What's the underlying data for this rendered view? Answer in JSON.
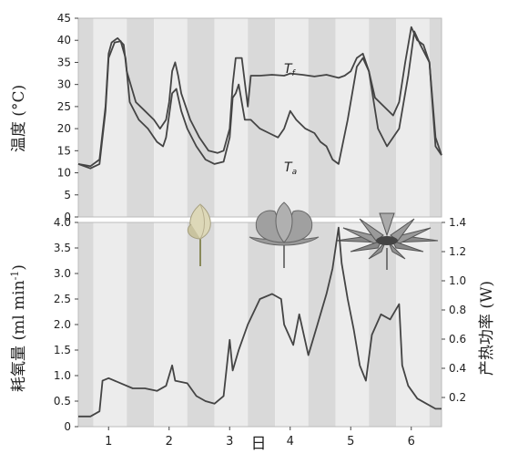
{
  "chart_data": [
    {
      "type": "line",
      "panel": "top",
      "xlabel": "日",
      "ylabel": "温度 (°C)",
      "xlim": [
        0.5,
        6.5
      ],
      "ylim": [
        0,
        45
      ],
      "x_ticks": [
        "1",
        "2",
        "3",
        "4",
        "5",
        "6"
      ],
      "y_ticks": [
        "0",
        "5",
        "10",
        "15",
        "20",
        "25",
        "30",
        "35",
        "40",
        "45"
      ],
      "shading": "alternating gray bands (day/night)",
      "series": [
        {
          "name": "Tf",
          "label_main": "T",
          "label_sub": "f",
          "color": "#444444",
          "points": [
            [
              0.5,
              12
            ],
            [
              0.7,
              11.5
            ],
            [
              0.85,
              13
            ],
            [
              0.95,
              25
            ],
            [
              1.0,
              37
            ],
            [
              1.05,
              39.5
            ],
            [
              1.15,
              40.5
            ],
            [
              1.25,
              39
            ],
            [
              1.3,
              33
            ],
            [
              1.45,
              26
            ],
            [
              1.6,
              24
            ],
            [
              1.75,
              22
            ],
            [
              1.85,
              20
            ],
            [
              1.95,
              22
            ],
            [
              2.0,
              26
            ],
            [
              2.05,
              33
            ],
            [
              2.1,
              35
            ],
            [
              2.15,
              32
            ],
            [
              2.2,
              28
            ],
            [
              2.35,
              22
            ],
            [
              2.5,
              18
            ],
            [
              2.65,
              15
            ],
            [
              2.8,
              14.5
            ],
            [
              2.9,
              15
            ],
            [
              3.0,
              20
            ],
            [
              3.05,
              30
            ],
            [
              3.1,
              36
            ],
            [
              3.2,
              36
            ],
            [
              3.3,
              25
            ],
            [
              3.35,
              32
            ],
            [
              3.5,
              32
            ],
            [
              3.7,
              32.2
            ],
            [
              3.9,
              32
            ],
            [
              4.0,
              32.5
            ],
            [
              4.2,
              32.2
            ],
            [
              4.4,
              31.8
            ],
            [
              4.6,
              32.2
            ],
            [
              4.8,
              31.5
            ],
            [
              4.9,
              32
            ],
            [
              5.0,
              33
            ],
            [
              5.1,
              36
            ],
            [
              5.2,
              37
            ],
            [
              5.3,
              33
            ],
            [
              5.4,
              27
            ],
            [
              5.55,
              25
            ],
            [
              5.7,
              23
            ],
            [
              5.8,
              26
            ],
            [
              5.9,
              35
            ],
            [
              6.0,
              43
            ],
            [
              6.1,
              40
            ],
            [
              6.2,
              39
            ],
            [
              6.3,
              35
            ],
            [
              6.4,
              16
            ],
            [
              6.5,
              14
            ]
          ]
        },
        {
          "name": "Ta",
          "label_main": "T",
          "label_sub": "a",
          "color": "#444444",
          "points": [
            [
              0.5,
              12
            ],
            [
              0.7,
              11
            ],
            [
              0.85,
              12
            ],
            [
              0.95,
              24
            ],
            [
              1.0,
              36
            ],
            [
              1.1,
              39.5
            ],
            [
              1.2,
              39.8
            ],
            [
              1.28,
              36
            ],
            [
              1.35,
              26
            ],
            [
              1.5,
              22
            ],
            [
              1.65,
              20
            ],
            [
              1.8,
              17
            ],
            [
              1.9,
              16
            ],
            [
              1.95,
              18
            ],
            [
              2.05,
              28
            ],
            [
              2.12,
              29
            ],
            [
              2.2,
              24
            ],
            [
              2.3,
              20
            ],
            [
              2.45,
              16
            ],
            [
              2.6,
              13
            ],
            [
              2.75,
              12
            ],
            [
              2.9,
              12.5
            ],
            [
              3.0,
              18
            ],
            [
              3.05,
              27
            ],
            [
              3.1,
              28
            ],
            [
              3.15,
              30
            ],
            [
              3.25,
              22
            ],
            [
              3.35,
              22
            ],
            [
              3.5,
              20
            ],
            [
              3.65,
              19
            ],
            [
              3.8,
              18
            ],
            [
              3.9,
              20
            ],
            [
              4.0,
              24
            ],
            [
              4.1,
              22
            ],
            [
              4.25,
              20
            ],
            [
              4.4,
              19
            ],
            [
              4.5,
              17
            ],
            [
              4.6,
              16
            ],
            [
              4.7,
              13
            ],
            [
              4.8,
              12
            ],
            [
              4.95,
              22
            ],
            [
              5.1,
              34
            ],
            [
              5.2,
              36
            ],
            [
              5.3,
              33
            ],
            [
              5.45,
              20
            ],
            [
              5.6,
              16
            ],
            [
              5.8,
              20
            ],
            [
              5.95,
              32
            ],
            [
              6.05,
              42
            ],
            [
              6.15,
              39
            ],
            [
              6.3,
              35
            ],
            [
              6.4,
              18
            ],
            [
              6.5,
              14
            ]
          ]
        }
      ]
    },
    {
      "type": "line",
      "panel": "bottom",
      "xlabel": "日",
      "ylabel": "耗氧量 (ml min",
      "ylabel_sup": "-1",
      "ylabel_end": ")",
      "y2label": "产热功率 (W)",
      "xlim": [
        0.5,
        6.5
      ],
      "ylim": [
        0,
        4.0
      ],
      "y2lim": [
        0,
        1.4
      ],
      "x_ticks": [
        "1",
        "2",
        "3",
        "4",
        "5",
        "6"
      ],
      "y_ticks": [
        "0",
        "0.5",
        "1.0",
        "1.5",
        "2.0",
        "2.5",
        "3.0",
        "3.5",
        "4.0"
      ],
      "y2_ticks": [
        "0.2",
        "0.4",
        "0.6",
        "0.8",
        "1.0",
        "1.2",
        "1.4"
      ],
      "series": [
        {
          "color": "#444444",
          "points": [
            [
              0.5,
              0.2
            ],
            [
              0.7,
              0.2
            ],
            [
              0.85,
              0.3
            ],
            [
              0.9,
              0.9
            ],
            [
              1.0,
              0.95
            ],
            [
              1.2,
              0.85
            ],
            [
              1.4,
              0.75
            ],
            [
              1.6,
              0.75
            ],
            [
              1.8,
              0.7
            ],
            [
              1.95,
              0.8
            ],
            [
              2.05,
              1.2
            ],
            [
              2.1,
              0.9
            ],
            [
              2.3,
              0.85
            ],
            [
              2.45,
              0.6
            ],
            [
              2.6,
              0.5
            ],
            [
              2.75,
              0.45
            ],
            [
              2.9,
              0.6
            ],
            [
              3.0,
              1.7
            ],
            [
              3.05,
              1.1
            ],
            [
              3.15,
              1.5
            ],
            [
              3.3,
              2.0
            ],
            [
              3.5,
              2.5
            ],
            [
              3.7,
              2.6
            ],
            [
              3.85,
              2.5
            ],
            [
              3.9,
              2.0
            ],
            [
              4.05,
              1.6
            ],
            [
              4.15,
              2.2
            ],
            [
              4.3,
              1.4
            ],
            [
              4.45,
              2.0
            ],
            [
              4.6,
              2.6
            ],
            [
              4.7,
              3.1
            ],
            [
              4.8,
              3.9
            ],
            [
              4.85,
              3.2
            ],
            [
              4.95,
              2.5
            ],
            [
              5.05,
              1.9
            ],
            [
              5.15,
              1.2
            ],
            [
              5.25,
              0.9
            ],
            [
              5.35,
              1.8
            ],
            [
              5.5,
              2.2
            ],
            [
              5.65,
              2.1
            ],
            [
              5.8,
              2.4
            ],
            [
              5.85,
              1.2
            ],
            [
              5.95,
              0.8
            ],
            [
              6.1,
              0.55
            ],
            [
              6.25,
              0.45
            ],
            [
              6.4,
              0.35
            ],
            [
              6.5,
              0.35
            ]
          ]
        }
      ]
    }
  ]
}
